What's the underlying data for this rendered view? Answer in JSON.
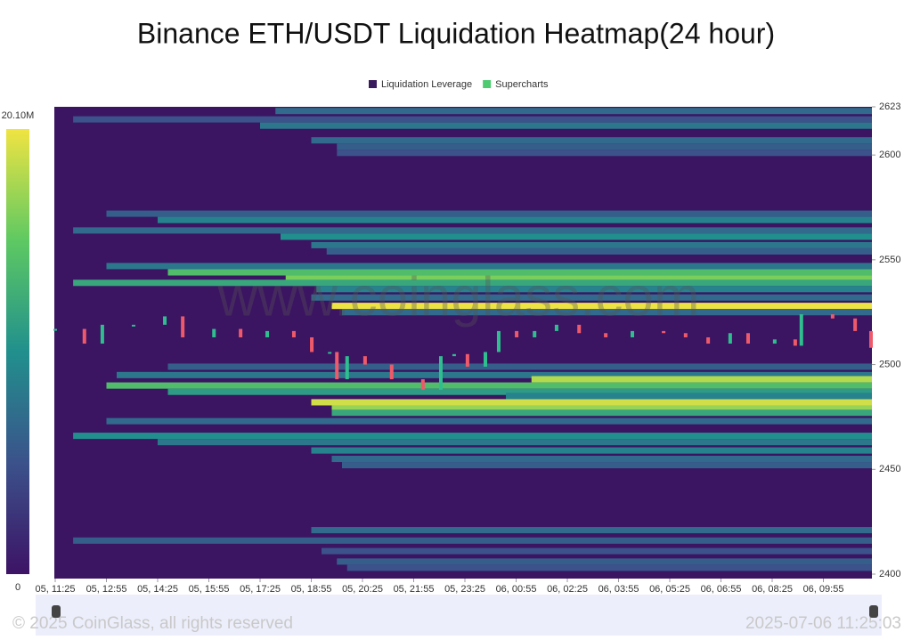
{
  "chart_data": {
    "type": "heatmap",
    "title": "Binance ETH/USDT Liquidation Heatmap(24 hour)",
    "watermark": "www.coinglass.com",
    "footer_left": "© 2025 CoinGlass, all rights reserved",
    "footer_right": "2025-07-06 11:25:03",
    "xlim": [
      0,
      16
    ],
    "xticks": [
      {
        "value": 0,
        "label": "05, 11:25"
      },
      {
        "value": 1,
        "label": "05, 12:55"
      },
      {
        "value": 2,
        "label": "05, 14:25"
      },
      {
        "value": 3,
        "label": "05, 15:55"
      },
      {
        "value": 4,
        "label": "05, 17:25"
      },
      {
        "value": 5,
        "label": "05, 18:55"
      },
      {
        "value": 6,
        "label": "05, 20:25"
      },
      {
        "value": 7,
        "label": "05, 21:55"
      },
      {
        "value": 8,
        "label": "05, 23:25"
      },
      {
        "value": 9,
        "label": "06, 00:55"
      },
      {
        "value": 10,
        "label": "06, 02:25"
      },
      {
        "value": 11,
        "label": "06, 03:55"
      },
      {
        "value": 12,
        "label": "06, 05:25"
      },
      {
        "value": 13,
        "label": "06, 06:55"
      },
      {
        "value": 14,
        "label": "06, 08:25"
      },
      {
        "value": 15,
        "label": "06, 09:55"
      }
    ],
    "ylim": [
      2400,
      2623
    ],
    "yticks": [
      2400,
      2450,
      2500,
      2550,
      2600,
      2623
    ],
    "colorlim": [
      0,
      20.1
    ],
    "colorticks": [
      {
        "value": 20.1,
        "label": "20.10M"
      },
      0
    ],
    "series": [
      {
        "name": "Liquidation Leverage",
        "color": "#3a1a5e",
        "bands": [
          {
            "price": 2621,
            "start": 4.3,
            "value": 7
          },
          {
            "price": 2617,
            "start": 0.35,
            "value": 5
          },
          {
            "price": 2614,
            "start": 4,
            "value": 8
          },
          {
            "price": 2607,
            "start": 5,
            "value": 7
          },
          {
            "price": 2604,
            "start": 5.5,
            "value": 6
          },
          {
            "price": 2601,
            "start": 5.5,
            "value": 5
          },
          {
            "price": 2572,
            "start": 1,
            "value": 6
          },
          {
            "price": 2569,
            "start": 2,
            "value": 9
          },
          {
            "price": 2564,
            "start": 0.35,
            "value": 7
          },
          {
            "price": 2561,
            "start": 4.4,
            "value": 10
          },
          {
            "price": 2557,
            "start": 5,
            "value": 8
          },
          {
            "price": 2554,
            "start": 5.3,
            "value": 6
          },
          {
            "price": 2547,
            "start": 1,
            "value": 8
          },
          {
            "price": 2544,
            "start": 2.2,
            "value": 14
          },
          {
            "price": 2541,
            "start": 4.5,
            "value": 16
          },
          {
            "price": 2539,
            "start": 0.35,
            "value": 12
          },
          {
            "price": 2536,
            "start": 5.1,
            "value": 9
          },
          {
            "price": 2532,
            "start": 5,
            "value": 7
          },
          {
            "price": 2528,
            "start": 5.4,
            "value": 20
          },
          {
            "price": 2525,
            "start": 5.6,
            "value": 7
          },
          {
            "price": 2499,
            "start": 2.2,
            "value": 6
          },
          {
            "price": 2495,
            "start": 1.2,
            "value": 8
          },
          {
            "price": 2493,
            "start": 9.3,
            "value": 18
          },
          {
            "price": 2490,
            "start": 1,
            "value": 14
          },
          {
            "price": 2487,
            "start": 2.2,
            "value": 11
          },
          {
            "price": 2485,
            "start": 8.8,
            "value": 9
          },
          {
            "price": 2482,
            "start": 5,
            "value": 19
          },
          {
            "price": 2479,
            "start": 5.4,
            "value": 17
          },
          {
            "price": 2477,
            "start": 5.4,
            "value": 12
          },
          {
            "price": 2473,
            "start": 1,
            "value": 7
          },
          {
            "price": 2466,
            "start": 0.35,
            "value": 10
          },
          {
            "price": 2463,
            "start": 2,
            "value": 8
          },
          {
            "price": 2459,
            "start": 5,
            "value": 9
          },
          {
            "price": 2455,
            "start": 5.4,
            "value": 7
          },
          {
            "price": 2452,
            "start": 5.6,
            "value": 6
          },
          {
            "price": 2421,
            "start": 5,
            "value": 7
          },
          {
            "price": 2416,
            "start": 0.35,
            "value": 6
          },
          {
            "price": 2411,
            "start": 5.2,
            "value": 5
          },
          {
            "price": 2406,
            "start": 5.5,
            "value": 6
          },
          {
            "price": 2403,
            "start": 5.7,
            "value": 5
          }
        ]
      },
      {
        "name": "Supercharts",
        "color": "#4ecb71",
        "x": [
          0,
          0.57,
          0.92,
          1.53,
          2.14,
          2.49,
          3.1,
          3.62,
          4.14,
          4.66,
          5.01,
          5.36,
          5.5,
          5.7,
          6.05,
          6.57,
          7.18,
          7.53,
          7.79,
          8.05,
          8.4,
          8.66,
          9.01,
          9.36,
          9.79,
          10.23,
          10.75,
          11.27,
          11.88,
          12.31,
          12.75,
          13.18,
          13.53,
          14.05,
          14.45,
          14.57,
          15.18,
          15.62,
          15.93
        ],
        "values": [
          2517,
          2510,
          2519,
          2519,
          2523,
          2513,
          2517,
          2513,
          2516,
          2513,
          2506,
          2506,
          2493,
          2504,
          2500,
          2493,
          2488,
          2504,
          2505,
          2499,
          2506,
          2516,
          2513,
          2516,
          2519,
          2515,
          2513,
          2516,
          2515,
          2513,
          2510,
          2515,
          2510,
          2512,
          2509,
          2524,
          2522,
          2516,
          2508
        ]
      }
    ]
  }
}
